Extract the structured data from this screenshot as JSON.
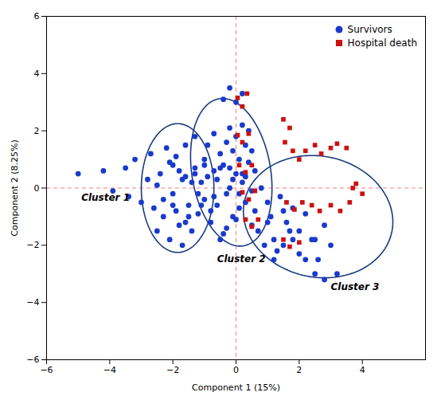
{
  "chart_data": {
    "type": "scatter",
    "xlabel": "Component 1 (15%)",
    "ylabel": "Component 2 (8.25%)",
    "xlim": [
      -6,
      6
    ],
    "ylim": [
      -6,
      6
    ],
    "xticks": [
      -6,
      -4,
      -2,
      0,
      2,
      4
    ],
    "yticks": [
      -6,
      -4,
      -2,
      0,
      2,
      4,
      6
    ],
    "grid": false,
    "legend": "upper right",
    "reference_lines": [
      {
        "axis": "y",
        "value": 0,
        "color": "#f08080",
        "line_style": "dashed"
      },
      {
        "axis": "x",
        "value": 0,
        "color": "#f08080",
        "line_style": "dashed"
      }
    ],
    "ellipses": [
      {
        "cx": -1.85,
        "cy": 0.0,
        "width": 2.3,
        "height": 4.5,
        "angle": 0,
        "color": "#1a3a80"
      },
      {
        "cx": -0.15,
        "cy": 0.55,
        "width": 2.5,
        "height": 5.2,
        "angle": 8,
        "color": "#1a3a80"
      },
      {
        "cx": 2.6,
        "cy": -1.0,
        "width": 4.8,
        "height": 4.2,
        "angle": -20,
        "color": "#1a3a80"
      }
    ],
    "annotations": [
      {
        "text": "Cluster 1",
        "x": -4.9,
        "y": -0.45
      },
      {
        "text": "Cluster 2",
        "x": -0.6,
        "y": -2.6
      },
      {
        "text": "Cluster 3",
        "x": 3.0,
        "y": -3.55
      }
    ],
    "series": [
      {
        "name": "Survivors",
        "color": "#1a3acc",
        "marker": "circle",
        "values": [
          [
            -5.0,
            0.5
          ],
          [
            -4.2,
            0.6
          ],
          [
            -3.9,
            -0.1
          ],
          [
            -3.5,
            0.7
          ],
          [
            -3.4,
            -0.3
          ],
          [
            -3.2,
            1.0
          ],
          [
            -3.0,
            -0.5
          ],
          [
            -2.8,
            0.3
          ],
          [
            -2.7,
            1.2
          ],
          [
            -2.6,
            -0.7
          ],
          [
            -2.5,
            -1.5
          ],
          [
            -2.4,
            0.5
          ],
          [
            -2.3,
            -1.0
          ],
          [
            -2.2,
            1.4
          ],
          [
            -2.1,
            -1.8
          ],
          [
            -2.0,
            -0.2
          ],
          [
            -2.0,
            0.8
          ],
          [
            -1.9,
            1.1
          ],
          [
            -1.8,
            -1.3
          ],
          [
            -1.7,
            -2.0
          ],
          [
            -1.6,
            0.4
          ],
          [
            -1.6,
            1.5
          ],
          [
            -1.5,
            -0.6
          ],
          [
            -1.4,
            -1.5
          ],
          [
            -1.3,
            0.7
          ],
          [
            -1.3,
            1.8
          ],
          [
            -1.2,
            -0.9
          ],
          [
            -1.1,
            0.2
          ],
          [
            -1.0,
            1.0
          ],
          [
            -1.0,
            -0.4
          ],
          [
            -0.9,
            1.5
          ],
          [
            -0.8,
            -1.2
          ],
          [
            -0.7,
            0.6
          ],
          [
            -0.7,
            1.9
          ],
          [
            -0.6,
            -0.6
          ],
          [
            -0.5,
            1.2
          ],
          [
            -0.5,
            -1.8
          ],
          [
            -0.4,
            0.8
          ],
          [
            -0.3,
            1.6
          ],
          [
            -0.3,
            -0.2
          ],
          [
            -0.2,
            2.1
          ],
          [
            -0.2,
            0.0
          ],
          [
            -0.1,
            1.3
          ],
          [
            -0.1,
            -1.0
          ],
          [
            0.0,
            0.5
          ],
          [
            0.0,
            1.8
          ],
          [
            0.1,
            -0.7
          ],
          [
            0.1,
            1.0
          ],
          [
            0.2,
            2.2
          ],
          [
            0.2,
            0.2
          ],
          [
            0.3,
            1.5
          ],
          [
            0.3,
            -0.5
          ],
          [
            0.4,
            0.9
          ],
          [
            0.4,
            2.0
          ],
          [
            0.5,
            -0.1
          ],
          [
            0.5,
            1.3
          ],
          [
            0.6,
            -0.8
          ],
          [
            0.6,
            0.6
          ],
          [
            -2.5,
            0.1
          ],
          [
            -2.3,
            -0.4
          ],
          [
            -2.1,
            0.9
          ],
          [
            -1.9,
            -0.8
          ],
          [
            -1.7,
            0.3
          ],
          [
            -1.5,
            -1.0
          ],
          [
            -1.3,
            0.5
          ],
          [
            -1.1,
            -0.6
          ],
          [
            -0.9,
            0.4
          ],
          [
            -0.7,
            -0.3
          ],
          [
            -0.5,
            0.7
          ],
          [
            -0.3,
            -1.4
          ],
          [
            -0.1,
            0.3
          ],
          [
            0.1,
            -0.2
          ],
          [
            0.3,
            0.4
          ],
          [
            0.5,
            -1.3
          ],
          [
            -2.0,
            -0.6
          ],
          [
            -1.8,
            0.6
          ],
          [
            -1.6,
            -1.2
          ],
          [
            -1.4,
            0.2
          ],
          [
            -1.2,
            -0.2
          ],
          [
            -1.0,
            0.8
          ],
          [
            -0.8,
            -0.8
          ],
          [
            -0.6,
            0.3
          ],
          [
            -0.4,
            -1.6
          ],
          [
            -0.2,
            0.7
          ],
          [
            0.0,
            -1.1
          ],
          [
            0.2,
            0.5
          ],
          [
            0.8,
            0.0
          ],
          [
            1.0,
            -0.5
          ],
          [
            1.2,
            -1.8
          ],
          [
            1.4,
            -0.3
          ],
          [
            1.6,
            -1.2
          ],
          [
            1.8,
            -0.7
          ],
          [
            2.0,
            -1.5
          ],
          [
            2.2,
            -0.9
          ],
          [
            2.4,
            -1.8
          ],
          [
            2.6,
            -2.5
          ],
          [
            2.8,
            -1.3
          ],
          [
            3.0,
            -2.0
          ],
          [
            3.2,
            -3.0
          ],
          [
            1.0,
            -1.2
          ],
          [
            1.5,
            -2.0
          ],
          [
            2.0,
            -2.3
          ],
          [
            2.5,
            -3.0
          ],
          [
            1.2,
            -2.5
          ],
          [
            1.8,
            -1.8
          ],
          [
            2.8,
            -3.2
          ],
          [
            1.5,
            -0.8
          ],
          [
            1.7,
            -1.5
          ],
          [
            2.2,
            -2.5
          ],
          [
            2.5,
            -1.8
          ],
          [
            0.7,
            -1.5
          ],
          [
            0.9,
            -2.0
          ],
          [
            1.1,
            -1.0
          ],
          [
            1.3,
            -2.2
          ],
          [
            -0.2,
            3.5
          ],
          [
            0.0,
            3.0
          ],
          [
            0.2,
            3.3
          ],
          [
            -0.4,
            3.1
          ]
        ]
      },
      {
        "name": "Hospital death",
        "color": "#cc1111",
        "marker": "square",
        "values": [
          [
            0.05,
            3.15
          ],
          [
            0.2,
            2.85
          ],
          [
            0.35,
            3.3
          ],
          [
            0.05,
            1.85
          ],
          [
            0.2,
            1.6
          ],
          [
            0.4,
            1.9
          ],
          [
            0.1,
            0.8
          ],
          [
            0.3,
            0.55
          ],
          [
            0.5,
            0.8
          ],
          [
            0.2,
            -0.15
          ],
          [
            0.4,
            -0.4
          ],
          [
            0.6,
            -0.1
          ],
          [
            0.3,
            -1.1
          ],
          [
            0.5,
            -1.35
          ],
          [
            0.7,
            -1.1
          ],
          [
            1.5,
            2.4
          ],
          [
            1.7,
            2.1
          ],
          [
            1.55,
            1.6
          ],
          [
            1.8,
            1.3
          ],
          [
            2.0,
            1.0
          ],
          [
            2.2,
            1.3
          ],
          [
            2.5,
            1.5
          ],
          [
            2.7,
            1.2
          ],
          [
            3.0,
            1.4
          ],
          [
            3.2,
            1.55
          ],
          [
            3.5,
            1.4
          ],
          [
            1.6,
            -0.5
          ],
          [
            1.85,
            -0.75
          ],
          [
            2.1,
            -0.5
          ],
          [
            2.4,
            -0.6
          ],
          [
            2.65,
            -0.8
          ],
          [
            3.0,
            -0.6
          ],
          [
            3.3,
            -0.8
          ],
          [
            3.6,
            -0.5
          ],
          [
            1.5,
            -1.8
          ],
          [
            1.7,
            -2.05
          ],
          [
            2.0,
            -1.9
          ],
          [
            3.7,
            0.0
          ],
          [
            4.0,
            -0.2
          ],
          [
            3.8,
            0.15
          ]
        ]
      }
    ]
  }
}
